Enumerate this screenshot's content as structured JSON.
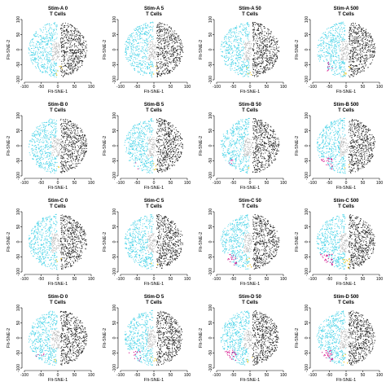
{
  "chart_data": {
    "type": "scatter",
    "subtitle": "T Cells",
    "xlabel": "FIt-SNE-1",
    "ylabel": "FIt-SNE-2",
    "xlim": [
      -100,
      100
    ],
    "ylim": [
      -100,
      100
    ],
    "xticks": [
      "-100",
      "-50",
      "0",
      "50",
      "100"
    ],
    "yticks": [
      "-100",
      "-50",
      "0",
      "50",
      "100"
    ],
    "colors": {
      "cyan_cluster": "#3cd0e6",
      "black_cluster": "#1a1a1a",
      "gray_cluster": "#b8b8b8",
      "magenta_cluster": "#d4148c",
      "yellow_cluster": "#f2c81e"
    },
    "panels": [
      {
        "title": "Stim-A 0",
        "magenta": 0.0,
        "yellow": 0.35
      },
      {
        "title": "Stim-A 5",
        "magenta": 0.0,
        "yellow": 0.35
      },
      {
        "title": "Stim-A 50",
        "magenta": 0.0,
        "yellow": 0.4
      },
      {
        "title": "Stim-A 500",
        "magenta": 0.4,
        "yellow": 0.7
      },
      {
        "title": "Stim-B 0",
        "magenta": 0.0,
        "yellow": 0.35
      },
      {
        "title": "Stim-B 5",
        "magenta": 0.05,
        "yellow": 0.4
      },
      {
        "title": "Stim-B 50",
        "magenta": 0.1,
        "yellow": 0.5
      },
      {
        "title": "Stim-B 500",
        "magenta": 0.8,
        "yellow": 0.8
      },
      {
        "title": "Stim-C 0",
        "magenta": 0.0,
        "yellow": 0.35
      },
      {
        "title": "Stim-C 5",
        "magenta": 0.05,
        "yellow": 0.4
      },
      {
        "title": "Stim-C 50",
        "magenta": 0.7,
        "yellow": 0.6
      },
      {
        "title": "Stim-C 500",
        "magenta": 1.0,
        "yellow": 0.9
      },
      {
        "title": "Stim-D 0",
        "magenta": 0.1,
        "yellow": 0.35
      },
      {
        "title": "Stim-D 5",
        "magenta": 0.5,
        "yellow": 0.5
      },
      {
        "title": "Stim-D 50",
        "magenta": 0.7,
        "yellow": 0.7
      },
      {
        "title": "Stim-D 500",
        "magenta": 0.8,
        "yellow": 0.9
      }
    ]
  }
}
